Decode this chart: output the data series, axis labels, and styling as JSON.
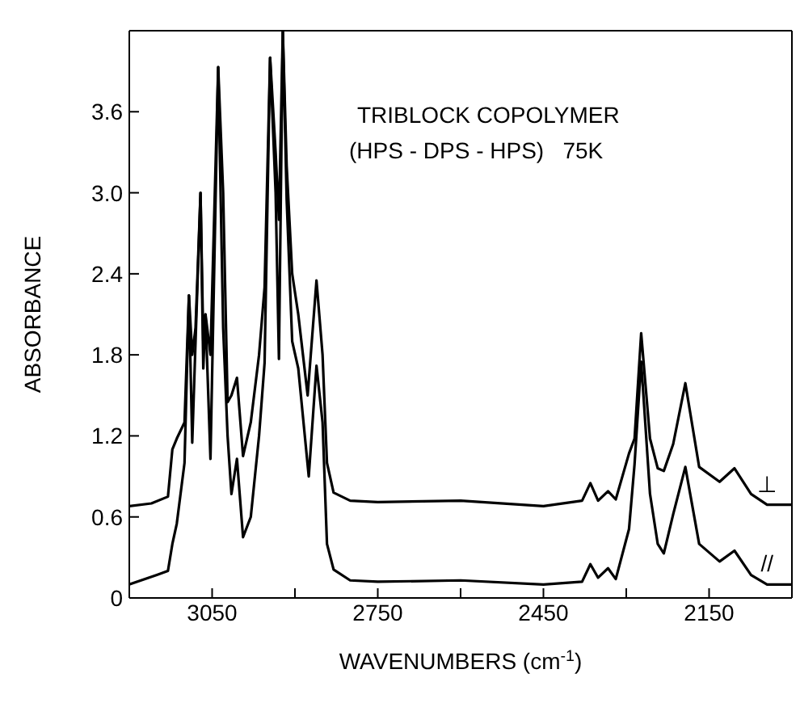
{
  "chart_data": {
    "type": "line",
    "title": "TRIBLOCK COPOLYMER",
    "subtitle": "(HPS - DPS - HPS)   75K",
    "xlabel": "WAVENUMBERS (cm$^{-1}$)",
    "ylabel": "ABSORBANCE",
    "xlim": [
      3200,
      2000
    ],
    "xticks": [
      3050,
      {
        "value": 2900,
        "label": null
      },
      2750,
      {
        "value": 2600,
        "label": null
      },
      2450,
      {
        "value": 2300,
        "label": null
      },
      2150
    ],
    "ylim": [
      0,
      4.2
    ],
    "yticks": [
      0,
      0.6,
      1.2,
      1.8,
      2.4,
      {
        "value": 3,
        "label": "3.0"
      },
      3.6
    ],
    "marker": "none",
    "line_style": "solid",
    "series": [
      {
        "name": "⊥",
        "color": "#000000",
        "x": [
          3200,
          3160,
          3130,
          3122,
          3114,
          3100,
          3092,
          3086,
          3080,
          3071,
          3066,
          3062,
          3053,
          3039,
          3030,
          3022,
          3015,
          3005,
          2994,
          2980,
          2965,
          2955,
          2945,
          2935,
          2929,
          2922,
          2915,
          2905,
          2894,
          2877,
          2861,
          2850,
          2842,
          2830,
          2800,
          2750,
          2600,
          2450,
          2380,
          2365,
          2351,
          2333,
          2319,
          2295,
          2285,
          2273,
          2257,
          2243,
          2232,
          2215,
          2193,
          2168,
          2131,
          2104,
          2074,
          2045,
          2000
        ],
        "values": [
          0.68,
          0.7,
          0.75,
          1.1,
          1.18,
          1.3,
          2.24,
          1.8,
          2.0,
          3.0,
          1.9,
          2.1,
          1.8,
          3.93,
          3.0,
          1.45,
          1.5,
          1.63,
          1.05,
          1.3,
          1.8,
          2.3,
          4.0,
          3.3,
          2.8,
          4.2,
          3.2,
          2.4,
          2.1,
          1.5,
          2.35,
          1.8,
          1.0,
          0.78,
          0.72,
          0.71,
          0.72,
          0.68,
          0.72,
          0.85,
          0.72,
          0.79,
          0.73,
          1.07,
          1.18,
          1.96,
          1.18,
          0.96,
          0.94,
          1.14,
          1.59,
          0.97,
          0.86,
          0.96,
          0.77,
          0.69,
          0.69
        ]
      },
      {
        "name": "//",
        "color": "#000000",
        "x": [
          3200,
          3150,
          3130,
          3122,
          3114,
          3100,
          3092,
          3086,
          3080,
          3071,
          3066,
          3062,
          3053,
          3039,
          3030,
          3022,
          3015,
          3005,
          2994,
          2980,
          2965,
          2955,
          2945,
          2935,
          2929,
          2922,
          2915,
          2905,
          2894,
          2875,
          2861,
          2850,
          2842,
          2830,
          2800,
          2750,
          2600,
          2450,
          2380,
          2365,
          2351,
          2333,
          2319,
          2295,
          2285,
          2273,
          2257,
          2243,
          2232,
          2215,
          2193,
          2168,
          2131,
          2104,
          2074,
          2045,
          2000
        ],
        "values": [
          0.1,
          0.17,
          0.2,
          0.4,
          0.55,
          1.0,
          2.24,
          1.15,
          1.9,
          3.0,
          1.7,
          2.1,
          1.03,
          3.93,
          2.0,
          1.2,
          0.77,
          1.03,
          0.45,
          0.6,
          1.2,
          1.74,
          4.0,
          3.0,
          1.77,
          4.2,
          2.95,
          1.9,
          1.7,
          0.9,
          1.72,
          1.3,
          0.4,
          0.21,
          0.13,
          0.12,
          0.13,
          0.1,
          0.12,
          0.25,
          0.15,
          0.22,
          0.14,
          0.51,
          0.99,
          1.75,
          0.77,
          0.4,
          0.33,
          0.62,
          0.97,
          0.4,
          0.27,
          0.35,
          0.17,
          0.1,
          0.1
        ]
      }
    ]
  }
}
